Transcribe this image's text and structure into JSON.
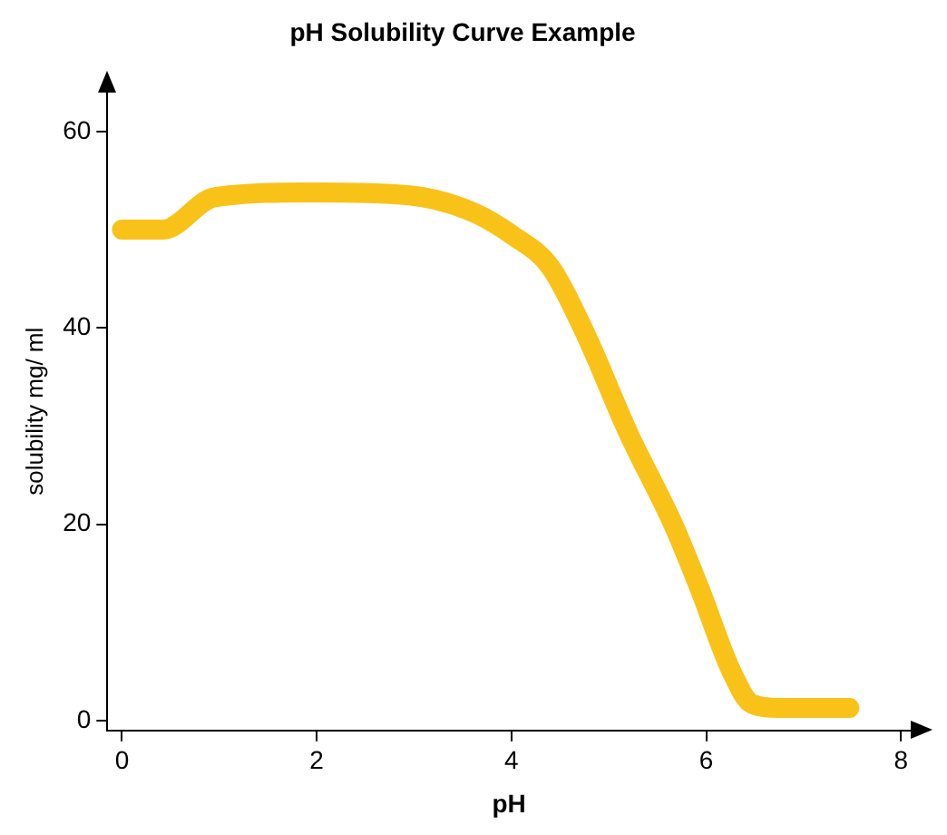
{
  "chart_data": {
    "type": "line",
    "title": "pH Solubility Curve Example",
    "xlabel": "pH",
    "ylabel": "solubility mg/ ml",
    "x": [
      0,
      0.42,
      0.95,
      1.95,
      2.95,
      3.6,
      4.03,
      4.4,
      4.75,
      5.2,
      5.66,
      5.93,
      6.26,
      6.47,
      6.75,
      7.47
    ],
    "series": [
      {
        "color": "#f9c219",
        "values": [
          50,
          50,
          53.3,
          53.8,
          53.5,
          51.8,
          49.3,
          46.2,
          39.6,
          29.3,
          20,
          13.5,
          5,
          1.7,
          1.3,
          1.3
        ]
      }
    ],
    "xlim": [
      -0.15,
      8.1
    ],
    "xticks": [
      0,
      2,
      4,
      6,
      8
    ],
    "ylim": [
      -1,
      64
    ],
    "yticks": [
      0,
      20,
      40,
      60
    ],
    "grid": false,
    "legend": false,
    "marker": "none",
    "line_style": "solid"
  }
}
